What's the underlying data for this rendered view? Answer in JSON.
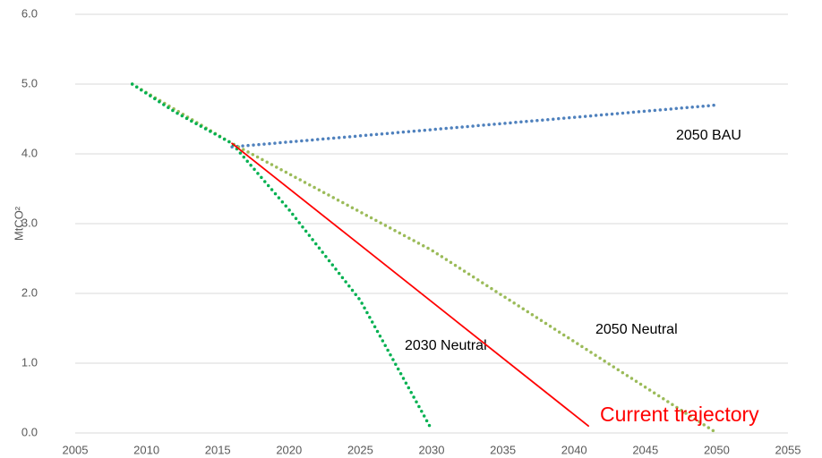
{
  "chart_data": {
    "type": "line",
    "y_label": "MtCO²",
    "xlim": [
      2005,
      2055
    ],
    "xticks": [
      2005,
      2010,
      2015,
      2020,
      2025,
      2030,
      2035,
      2040,
      2045,
      2050,
      2055
    ],
    "ylim": [
      0,
      6
    ],
    "yticks": [
      {
        "value": 0,
        "label": "0.0"
      },
      {
        "value": 1,
        "label": "1.0"
      },
      {
        "value": 2,
        "label": "2.0"
      },
      {
        "value": 3,
        "label": "3.0"
      },
      {
        "value": 4,
        "label": "4.0"
      },
      {
        "value": 5,
        "label": "5.0"
      },
      {
        "value": 6,
        "label": "6.0"
      }
    ],
    "grid": true,
    "series": [
      {
        "name": "2050 BAU",
        "color": "#4f81bd",
        "style": "dotted",
        "x": [
          2016,
          2050
        ],
        "values": [
          4.1,
          4.7
        ]
      },
      {
        "name": "2050 Neutral",
        "color": "#9bbb59",
        "style": "dotted",
        "x": [
          2009,
          2016,
          2030,
          2050
        ],
        "values": [
          5.0,
          4.15,
          2.62,
          0.0
        ]
      },
      {
        "name": "2030 Neutral",
        "color": "#00b050",
        "style": "dotted",
        "x": [
          2009,
          2012,
          2016,
          2020,
          2025,
          2030
        ],
        "values": [
          5.0,
          4.6,
          4.15,
          3.2,
          1.9,
          0.05
        ]
      },
      {
        "name": "Current trajectory",
        "color": "#ff0000",
        "style": "solid",
        "x": [
          2016,
          2041
        ],
        "values": [
          4.15,
          0.1
        ]
      }
    ]
  }
}
